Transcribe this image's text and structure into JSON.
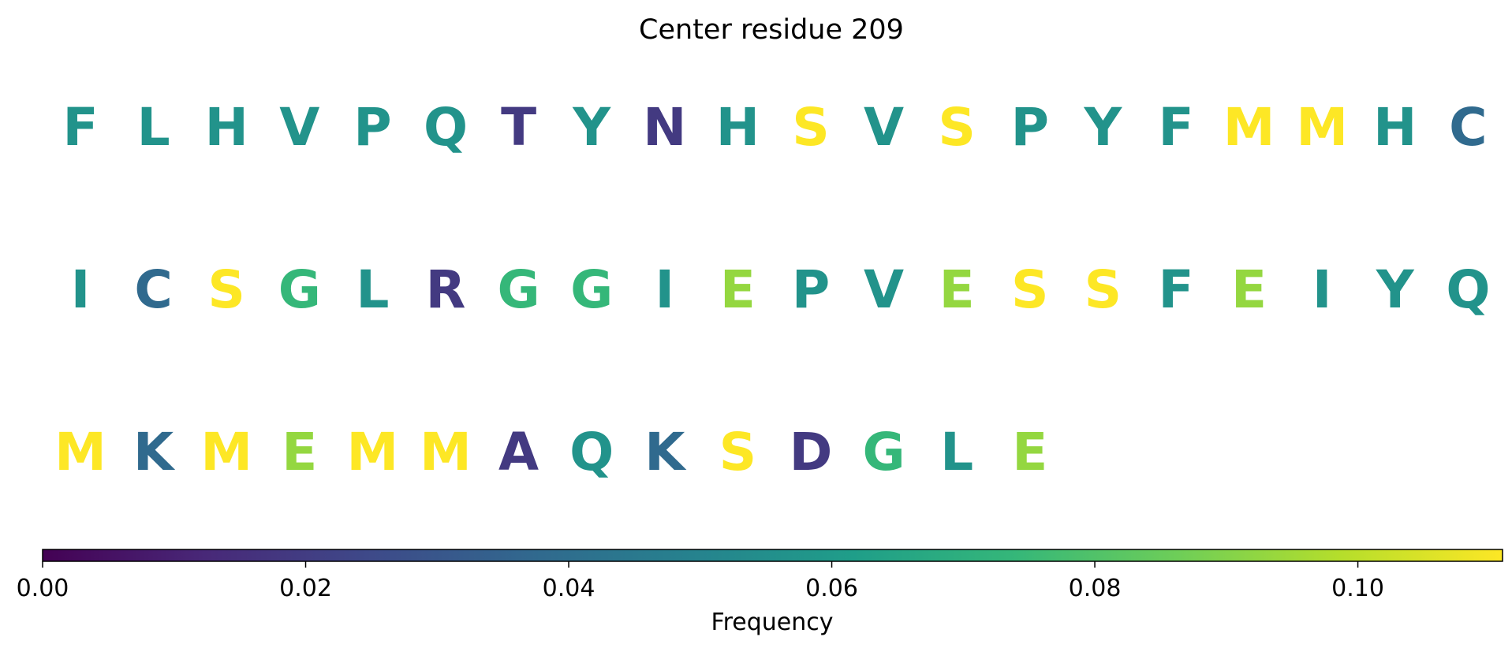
{
  "chart_data": {
    "type": "heatmap",
    "title": "Center residue 209",
    "residues": [
      {
        "letter": "F",
        "value": 0.057
      },
      {
        "letter": "L",
        "value": 0.057
      },
      {
        "letter": "H",
        "value": 0.057
      },
      {
        "letter": "V",
        "value": 0.057
      },
      {
        "letter": "P",
        "value": 0.057
      },
      {
        "letter": "Q",
        "value": 0.057
      },
      {
        "letter": "T",
        "value": 0.019
      },
      {
        "letter": "Y",
        "value": 0.057
      },
      {
        "letter": "N",
        "value": 0.019
      },
      {
        "letter": "H",
        "value": 0.057
      },
      {
        "letter": "S",
        "value": 0.111
      },
      {
        "letter": "V",
        "value": 0.057
      },
      {
        "letter": "S",
        "value": 0.111
      },
      {
        "letter": "P",
        "value": 0.057
      },
      {
        "letter": "Y",
        "value": 0.057
      },
      {
        "letter": "F",
        "value": 0.057
      },
      {
        "letter": "M",
        "value": 0.111
      },
      {
        "letter": "M",
        "value": 0.111
      },
      {
        "letter": "H",
        "value": 0.057
      },
      {
        "letter": "C",
        "value": 0.038
      },
      {
        "letter": "I",
        "value": 0.057
      },
      {
        "letter": "C",
        "value": 0.038
      },
      {
        "letter": "S",
        "value": 0.111
      },
      {
        "letter": "G",
        "value": 0.074
      },
      {
        "letter": "L",
        "value": 0.057
      },
      {
        "letter": "R",
        "value": 0.019
      },
      {
        "letter": "G",
        "value": 0.074
      },
      {
        "letter": "G",
        "value": 0.074
      },
      {
        "letter": "I",
        "value": 0.057
      },
      {
        "letter": "E",
        "value": 0.093
      },
      {
        "letter": "P",
        "value": 0.057
      },
      {
        "letter": "V",
        "value": 0.057
      },
      {
        "letter": "E",
        "value": 0.093
      },
      {
        "letter": "S",
        "value": 0.111
      },
      {
        "letter": "S",
        "value": 0.111
      },
      {
        "letter": "F",
        "value": 0.057
      },
      {
        "letter": "E",
        "value": 0.093
      },
      {
        "letter": "I",
        "value": 0.057
      },
      {
        "letter": "Y",
        "value": 0.057
      },
      {
        "letter": "Q",
        "value": 0.057
      },
      {
        "letter": "M",
        "value": 0.111
      },
      {
        "letter": "K",
        "value": 0.038
      },
      {
        "letter": "M",
        "value": 0.111
      },
      {
        "letter": "E",
        "value": 0.093
      },
      {
        "letter": "M",
        "value": 0.111
      },
      {
        "letter": "M",
        "value": 0.111
      },
      {
        "letter": "A",
        "value": 0.019
      },
      {
        "letter": "Q",
        "value": 0.057
      },
      {
        "letter": "K",
        "value": 0.038
      },
      {
        "letter": "S",
        "value": 0.111
      },
      {
        "letter": "D",
        "value": 0.019
      },
      {
        "letter": "G",
        "value": 0.074
      },
      {
        "letter": "L",
        "value": 0.057
      },
      {
        "letter": "E",
        "value": 0.093
      }
    ],
    "colorbar": {
      "label": "Frequency",
      "colormap": "viridis",
      "range": [
        0,
        0.111
      ],
      "ticks": [
        0.0,
        0.02,
        0.04,
        0.06,
        0.08,
        0.1
      ],
      "tick_labels": [
        "0.00",
        "0.02",
        "0.04",
        "0.06",
        "0.08",
        "0.10"
      ],
      "orientation": "horizontal",
      "placement": "bottom"
    },
    "grid": false
  }
}
